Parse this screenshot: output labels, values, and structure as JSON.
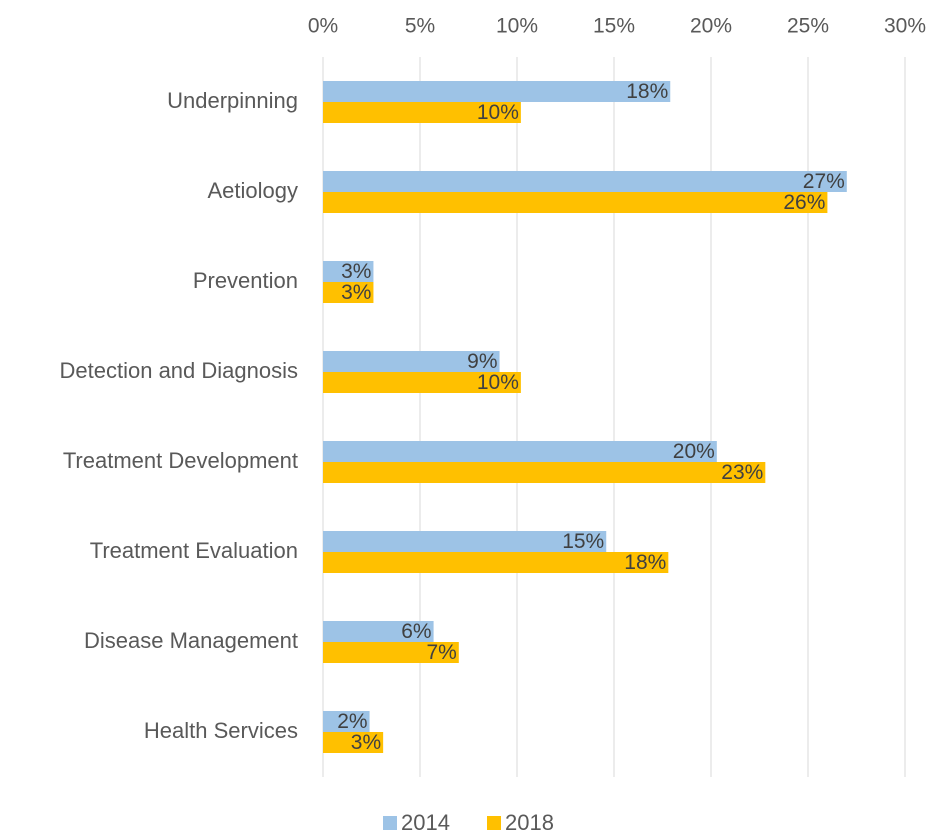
{
  "chart_data": {
    "type": "barh",
    "categories": [
      "Underpinning",
      "Aetiology",
      "Prevention",
      "Detection and Diagnosis",
      "Treatment Development",
      "Treatment Evaluation",
      "Disease Management",
      "Health Services"
    ],
    "series": [
      {
        "name": "2014",
        "color": "#9dc3e6",
        "values": [
          17.9,
          27.0,
          2.6,
          9.1,
          20.3,
          14.6,
          5.7,
          2.4
        ],
        "value_labels": [
          "18%",
          "27%",
          "3%",
          "9%",
          "20%",
          "15%",
          "6%",
          "2%"
        ]
      },
      {
        "name": "2018",
        "color": "#ffc000",
        "values": [
          10.2,
          26.0,
          2.6,
          10.2,
          22.8,
          17.8,
          7.0,
          3.1
        ],
        "value_labels": [
          "10%",
          "26%",
          "3%",
          "10%",
          "23%",
          "18%",
          "7%",
          "3%"
        ]
      }
    ],
    "xlim": [
      0,
      30
    ],
    "xticks": [
      {
        "value": 0,
        "label": "0%"
      },
      {
        "value": 5,
        "label": "5%"
      },
      {
        "value": 10,
        "label": "10%"
      },
      {
        "value": 15,
        "label": "15%"
      },
      {
        "value": 20,
        "label": "20%"
      },
      {
        "value": 25,
        "label": "25%"
      },
      {
        "value": 30,
        "label": "30%"
      }
    ],
    "grid": true,
    "legend": "bottom"
  }
}
